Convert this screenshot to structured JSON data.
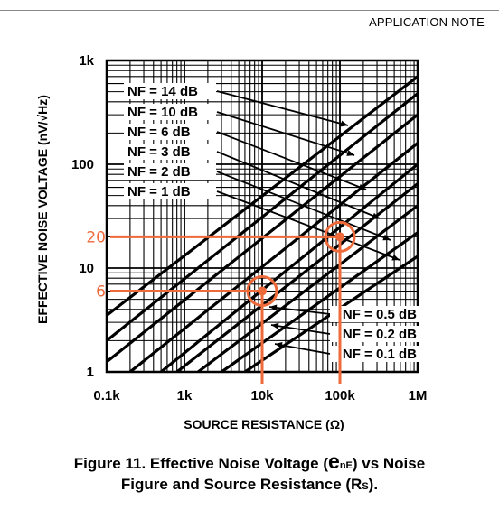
{
  "header": {
    "label": "APPLICATION NOTE"
  },
  "chart_data": {
    "type": "line",
    "xlabel": "SOURCE RESISTANCE (Ω)",
    "ylabel": "EFFECTIVE NOISE VOLTAGE (nV/√Hz)",
    "x_scale": "log",
    "y_scale": "log",
    "xlim": [
      100,
      1000000
    ],
    "ylim": [
      1,
      1000
    ],
    "x_ticks": [
      {
        "value": 100,
        "label": "0.1k"
      },
      {
        "value": 1000,
        "label": "1k"
      },
      {
        "value": 10000,
        "label": "10k"
      },
      {
        "value": 100000,
        "label": "100k"
      },
      {
        "value": 1000000,
        "label": "1M"
      }
    ],
    "y_ticks": [
      {
        "value": 1,
        "label": "1"
      },
      {
        "value": 10,
        "label": "10"
      },
      {
        "value": 100,
        "label": "100"
      },
      {
        "value": 1000,
        "label": "1k"
      }
    ],
    "grid": true,
    "series": [
      {
        "name": "NF = 14 dB",
        "x": [
          100,
          1000000
        ],
        "y": [
          3.5,
          700
        ]
      },
      {
        "name": "NF = 10 dB",
        "x": [
          100,
          1000000
        ],
        "y": [
          2.0,
          480
        ]
      },
      {
        "name": "NF =  6 dB",
        "x": [
          100,
          1000000
        ],
        "y": [
          1.25,
          300
        ]
      },
      {
        "name": "NF =  3 dB",
        "x": [
          200,
          1000000
        ],
        "y": [
          1.0,
          160
        ]
      },
      {
        "name": "NF =  2 dB",
        "x": [
          500,
          1000000
        ],
        "y": [
          1.0,
          100
        ]
      },
      {
        "name": "NF =  1 dB",
        "x": [
          800,
          1000000
        ],
        "y": [
          1.0,
          65
        ]
      },
      {
        "name": "NF = 0.5 dB",
        "x": [
          1500,
          1000000
        ],
        "y": [
          1.0,
          40
        ]
      },
      {
        "name": "NF = 0.2 dB",
        "x": [
          3000,
          1000000
        ],
        "y": [
          1.0,
          22
        ]
      },
      {
        "name": "NF = 0.1 dB",
        "x": [
          6000,
          1000000
        ],
        "y": [
          1.0,
          13
        ]
      }
    ],
    "annotations": [
      {
        "label": "20",
        "x": 100000,
        "y": 20
      },
      {
        "label": "6",
        "x": 10000,
        "y": 6
      }
    ],
    "annotation_color": "#ef6a3a"
  },
  "caption": {
    "line1_prefix": "Figure 11.     Effective Noise Voltage (",
    "symbol": "e",
    "symbol_sub": "nE",
    "line1_suffix": ") vs Noise",
    "line2_prefix": "Figure and Source Resistance (R",
    "line2_sub": "S",
    "line2_suffix": ")."
  }
}
